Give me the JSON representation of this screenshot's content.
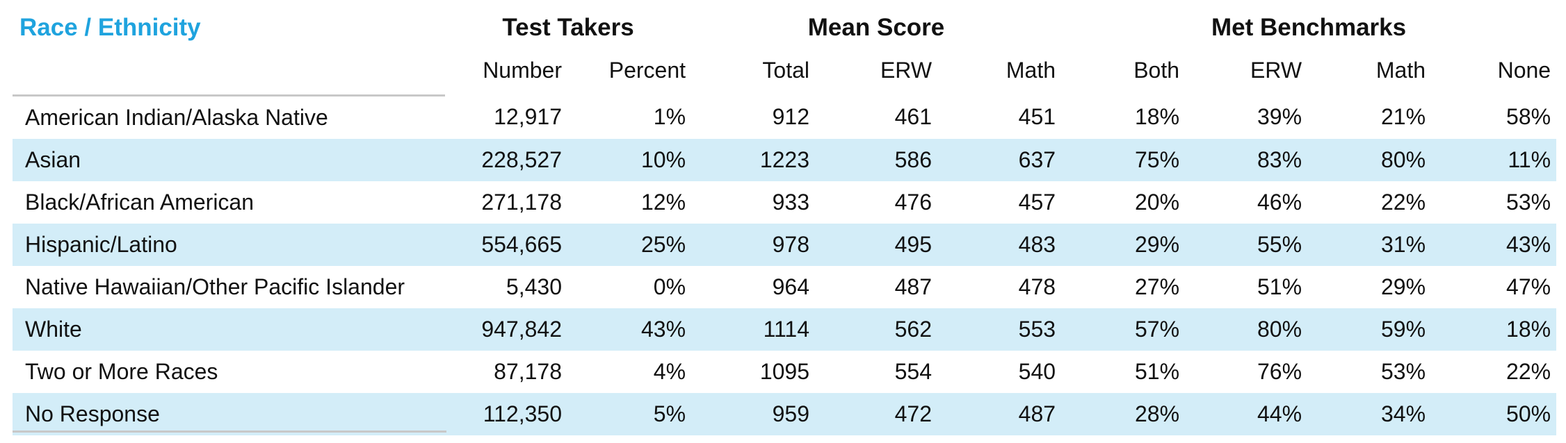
{
  "table": {
    "title": "Race / Ethnicity",
    "groups": {
      "test_takers": "Test Takers",
      "mean_score": "Mean Score",
      "met_benchmarks": "Met Benchmarks"
    },
    "columns": [
      "Number",
      "Percent",
      "Total",
      "ERW",
      "Math",
      "Both",
      "ERW",
      "Math",
      "None"
    ],
    "rows": [
      {
        "label": "American Indian/Alaska Native",
        "values": [
          "12,917",
          "1%",
          "912",
          "461",
          "451",
          "18%",
          "39%",
          "21%",
          "58%"
        ]
      },
      {
        "label": "Asian",
        "values": [
          "228,527",
          "10%",
          "1223",
          "586",
          "637",
          "75%",
          "83%",
          "80%",
          "11%"
        ]
      },
      {
        "label": "Black/African American",
        "values": [
          "271,178",
          "12%",
          "933",
          "476",
          "457",
          "20%",
          "46%",
          "22%",
          "53%"
        ]
      },
      {
        "label": "Hispanic/Latino",
        "values": [
          "554,665",
          "25%",
          "978",
          "495",
          "483",
          "29%",
          "55%",
          "31%",
          "43%"
        ]
      },
      {
        "label": "Native Hawaiian/Other Pacific Islander",
        "values": [
          "5,430",
          "0%",
          "964",
          "487",
          "478",
          "27%",
          "51%",
          "29%",
          "47%"
        ]
      },
      {
        "label": "White",
        "values": [
          "947,842",
          "43%",
          "1114",
          "562",
          "553",
          "57%",
          "80%",
          "59%",
          "18%"
        ]
      },
      {
        "label": "Two or More Races",
        "values": [
          "87,178",
          "4%",
          "1095",
          "554",
          "540",
          "51%",
          "76%",
          "53%",
          "22%"
        ]
      },
      {
        "label": "No Response",
        "values": [
          "112,350",
          "5%",
          "959",
          "472",
          "487",
          "28%",
          "44%",
          "34%",
          "50%"
        ]
      }
    ]
  },
  "colors": {
    "title": "#1fa3de",
    "stripe": "#d3edf8",
    "rule": "#c8c8c8"
  }
}
